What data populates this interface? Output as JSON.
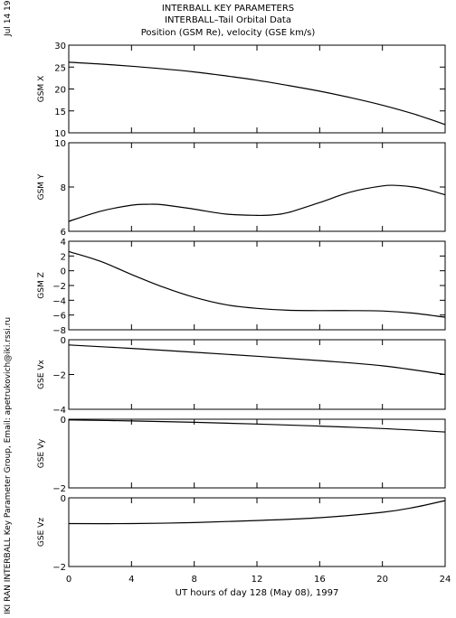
{
  "header": {
    "title_lines": [
      "INTERBALL KEY PARAMETERS",
      "INTERBALL–Tail Orbital Data",
      "Position (GSM Re), velocity (GSE km/s)"
    ]
  },
  "side_labels": {
    "date": "Jul 14 1998",
    "credit": "IKI RAN INTERBALL Key Parameter Group, Email: apetrukovich@iki.rssi.ru"
  },
  "chart_data": {
    "type": "line",
    "xlabel": "UT hours of day 128 (May 08), 1997",
    "xlim": [
      0,
      24
    ],
    "xticks": [
      "0",
      "4",
      "8",
      "12",
      "16",
      "20",
      "24"
    ],
    "line_color": "#000000",
    "panels": [
      {
        "ylabel": "GSM X",
        "ylim": [
          10,
          30
        ],
        "yticks": [
          "10",
          "15",
          "20",
          "25",
          "30"
        ],
        "x": [
          0,
          2,
          4,
          6,
          8,
          10,
          12,
          14,
          16,
          18,
          20,
          22,
          24
        ],
        "y": [
          26.1,
          25.7,
          25.2,
          24.6,
          23.9,
          23.0,
          22.0,
          20.8,
          19.5,
          18.0,
          16.3,
          14.3,
          11.9
        ]
      },
      {
        "ylabel": "GSM Y",
        "ylim": [
          6,
          10
        ],
        "yticks": [
          "6",
          "8",
          "10"
        ],
        "x": [
          0,
          2,
          4,
          5,
          6,
          8,
          10,
          12,
          13,
          14,
          16,
          18,
          20,
          21,
          22,
          23,
          24
        ],
        "y": [
          6.45,
          6.9,
          7.18,
          7.22,
          7.2,
          7.0,
          6.78,
          6.72,
          6.74,
          6.85,
          7.3,
          7.78,
          8.05,
          8.07,
          8.0,
          7.85,
          7.65
        ]
      },
      {
        "ylabel": "GSM Z",
        "ylim": [
          -8,
          4
        ],
        "yticks": [
          "−8",
          "−6",
          "−4",
          "−2",
          "0",
          "2",
          "4"
        ],
        "x": [
          0,
          2,
          4,
          6,
          8,
          10,
          12,
          14,
          16,
          18,
          20,
          22,
          24
        ],
        "y": [
          2.6,
          1.3,
          -0.5,
          -2.2,
          -3.6,
          -4.6,
          -5.1,
          -5.35,
          -5.4,
          -5.4,
          -5.45,
          -5.75,
          -6.3
        ]
      },
      {
        "ylabel": "GSE Vx",
        "ylim": [
          -4,
          0
        ],
        "yticks": [
          "−4",
          "−2",
          "0"
        ],
        "x": [
          0,
          4,
          8,
          12,
          16,
          20,
          24
        ],
        "y": [
          -0.3,
          -0.5,
          -0.72,
          -0.95,
          -1.2,
          -1.5,
          -2.0
        ]
      },
      {
        "ylabel": "GSE Vy",
        "ylim": [
          -2,
          0
        ],
        "yticks": [
          "−2",
          "0"
        ],
        "x": [
          0,
          4,
          8,
          12,
          16,
          20,
          24
        ],
        "y": [
          -0.02,
          -0.05,
          -0.09,
          -0.14,
          -0.2,
          -0.27,
          -0.37
        ]
      },
      {
        "ylabel": "GSE Vz",
        "ylim": [
          -2,
          0
        ],
        "yticks": [
          "−2",
          "0"
        ],
        "x": [
          0,
          4,
          8,
          12,
          16,
          20,
          22,
          24
        ],
        "y": [
          -0.75,
          -0.75,
          -0.72,
          -0.66,
          -0.58,
          -0.42,
          -0.28,
          -0.08
        ]
      }
    ]
  }
}
